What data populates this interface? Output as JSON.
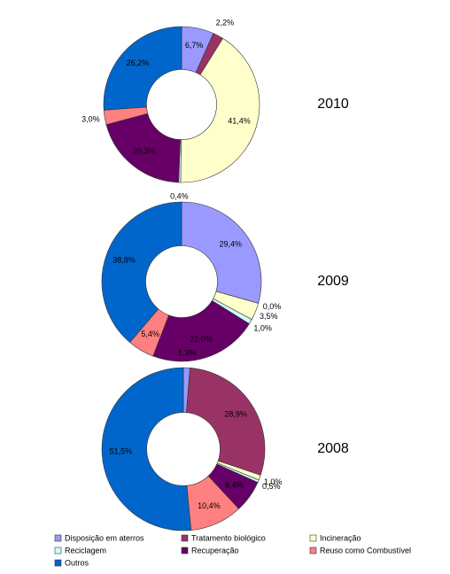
{
  "chart_data": [
    {
      "type": "donut",
      "title": "2010",
      "categories": [
        "Disposição em aterros",
        "Tratamento biológico",
        "Incineração",
        "Reciclagem",
        "Recuperação",
        "Reuso como Combustível",
        "Outros"
      ],
      "colors": [
        "#9999ff",
        "#993366",
        "#ffffcc",
        "#ccffff",
        "#660066",
        "#ff8080",
        "#0066cc"
      ],
      "values": [
        6.7,
        2.2,
        41.4,
        0.4,
        20.3,
        3.0,
        26.2
      ],
      "value_labels": [
        "6,7%",
        "2,2%",
        "41,4%",
        "0,4%",
        "20,3%",
        "3,0%",
        "26,2%"
      ]
    },
    {
      "type": "donut",
      "title": "2009",
      "categories": [
        "Disposição em aterros",
        "Tratamento biológico",
        "Incineração",
        "Reciclagem",
        "Recuperação",
        "Reuso como Combustível",
        "Outros"
      ],
      "colors": [
        "#9999ff",
        "#993366",
        "#ffffcc",
        "#ccffff",
        "#660066",
        "#ff8080",
        "#0066cc"
      ],
      "values": [
        29.4,
        0.0,
        3.5,
        1.0,
        22.0,
        5.4,
        38.8
      ],
      "value_labels": [
        "29,4%",
        "0,0%",
        "3,5%",
        "1,0%",
        "22,0%",
        "5,4%",
        "38,8%"
      ]
    },
    {
      "type": "donut",
      "title": "2008",
      "categories": [
        "Disposição em aterros",
        "Tratamento biológico",
        "Incineração",
        "Reciclagem",
        "Recuperação",
        "Reuso como Combustível",
        "Outros"
      ],
      "colors": [
        "#9999ff",
        "#993366",
        "#ffffcc",
        "#ccffff",
        "#660066",
        "#ff8080",
        "#0066cc"
      ],
      "values": [
        1.3,
        28.9,
        1.0,
        0.5,
        6.4,
        10.4,
        51.5
      ],
      "value_labels": [
        "1,3%",
        "28,9%",
        "1,0%",
        "0,5%",
        "6,4%",
        "10,4%",
        "51,5%"
      ]
    }
  ]
}
